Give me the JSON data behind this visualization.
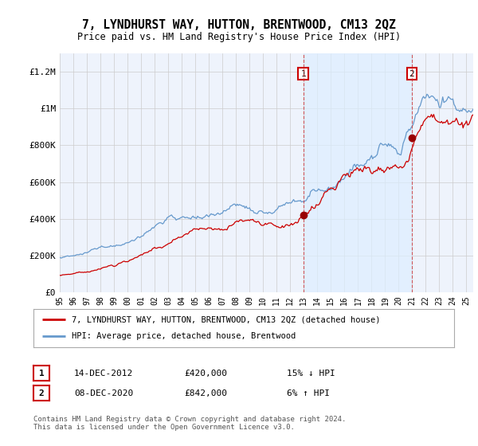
{
  "title": "7, LYNDHURST WAY, HUTTON, BRENTWOOD, CM13 2QZ",
  "subtitle": "Price paid vs. HM Land Registry's House Price Index (HPI)",
  "ylabel_ticks": [
    0,
    200000,
    400000,
    600000,
    800000,
    1000000,
    1200000
  ],
  "ylabel_labels": [
    "£0",
    "£200K",
    "£400K",
    "£600K",
    "£800K",
    "£1M",
    "£1.2M"
  ],
  "ylim": [
    0,
    1300000
  ],
  "xlim_start": 1995.0,
  "xlim_end": 2025.5,
  "legend_line1": "7, LYNDHURST WAY, HUTTON, BRENTWOOD, CM13 2QZ (detached house)",
  "legend_line2": "HPI: Average price, detached house, Brentwood",
  "transaction1_label": "1",
  "transaction1_date": "14-DEC-2012",
  "transaction1_price": "£420,000",
  "transaction1_hpi": "15% ↓ HPI",
  "transaction1_x": 2012.96,
  "transaction1_y": 420000,
  "transaction2_label": "2",
  "transaction2_date": "08-DEC-2020",
  "transaction2_price": "£842,000",
  "transaction2_hpi": "6% ↑ HPI",
  "transaction2_x": 2020.96,
  "transaction2_y": 842000,
  "footer": "Contains HM Land Registry data © Crown copyright and database right 2024.\nThis data is licensed under the Open Government Licence v3.0.",
  "line_color_property": "#cc0000",
  "line_color_hpi": "#6699cc",
  "shade_color": "#ddeeff",
  "background_color": "#eef3fc",
  "plot_background": "#ffffff"
}
